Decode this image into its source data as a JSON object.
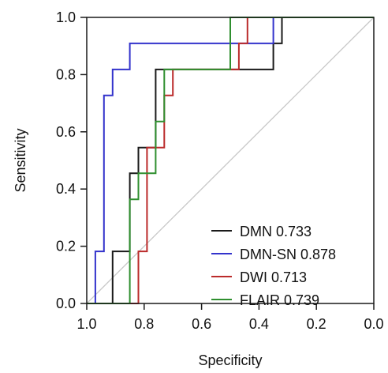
{
  "chart_data": {
    "type": "line",
    "xlabel": "Specificity",
    "ylabel": "Sensitivity",
    "xlim": [
      1.0,
      0.0
    ],
    "ylim": [
      0.0,
      1.0
    ],
    "x_reversed": true,
    "x_ticks": [
      "1.0",
      "0.8",
      "0.6",
      "0.4",
      "0.2",
      "0.0"
    ],
    "x_tick_values": [
      1.0,
      0.8,
      0.6,
      0.4,
      0.2,
      0.0
    ],
    "y_ticks": [
      "0.0",
      "0.2",
      "0.4",
      "0.6",
      "0.8",
      "1.0"
    ],
    "y_tick_values": [
      0.0,
      0.2,
      0.4,
      0.6,
      0.8,
      1.0
    ],
    "grid": false,
    "legend_position": "bottom-right",
    "reference_line": {
      "from": [
        1.0,
        0.0
      ],
      "to": [
        0.0,
        1.0
      ],
      "color": "#c8c8c8"
    },
    "series": [
      {
        "name": "DMN 0.733",
        "color": "#1a1a1a",
        "points": [
          [
            1.0,
            0.0
          ],
          [
            0.91,
            0.0
          ],
          [
            0.91,
            0.182
          ],
          [
            0.85,
            0.182
          ],
          [
            0.85,
            0.455
          ],
          [
            0.82,
            0.455
          ],
          [
            0.82,
            0.545
          ],
          [
            0.76,
            0.545
          ],
          [
            0.76,
            0.818
          ],
          [
            0.35,
            0.818
          ],
          [
            0.35,
            0.909
          ],
          [
            0.32,
            0.909
          ],
          [
            0.32,
            1.0
          ],
          [
            0.0,
            1.0
          ]
        ]
      },
      {
        "name": "DMN-SN 0.878",
        "color": "#3333cc",
        "points": [
          [
            1.0,
            0.0
          ],
          [
            0.97,
            0.0
          ],
          [
            0.97,
            0.182
          ],
          [
            0.94,
            0.182
          ],
          [
            0.94,
            0.727
          ],
          [
            0.91,
            0.727
          ],
          [
            0.91,
            0.818
          ],
          [
            0.85,
            0.818
          ],
          [
            0.85,
            0.909
          ],
          [
            0.35,
            0.909
          ],
          [
            0.35,
            1.0
          ],
          [
            0.0,
            1.0
          ]
        ]
      },
      {
        "name": "DWI 0.713",
        "color": "#bb2b2b",
        "points": [
          [
            1.0,
            0.0
          ],
          [
            0.82,
            0.0
          ],
          [
            0.82,
            0.182
          ],
          [
            0.79,
            0.182
          ],
          [
            0.79,
            0.545
          ],
          [
            0.73,
            0.545
          ],
          [
            0.73,
            0.727
          ],
          [
            0.7,
            0.727
          ],
          [
            0.7,
            0.818
          ],
          [
            0.47,
            0.818
          ],
          [
            0.47,
            0.909
          ],
          [
            0.44,
            0.909
          ],
          [
            0.44,
            1.0
          ],
          [
            0.0,
            1.0
          ]
        ]
      },
      {
        "name": "FLAIR 0.739",
        "color": "#2f8f2f",
        "points": [
          [
            1.0,
            0.0
          ],
          [
            0.85,
            0.0
          ],
          [
            0.85,
            0.364
          ],
          [
            0.82,
            0.364
          ],
          [
            0.82,
            0.455
          ],
          [
            0.76,
            0.455
          ],
          [
            0.76,
            0.636
          ],
          [
            0.73,
            0.636
          ],
          [
            0.73,
            0.818
          ],
          [
            0.5,
            0.818
          ],
          [
            0.5,
            1.0
          ],
          [
            0.0,
            1.0
          ]
        ]
      }
    ]
  }
}
